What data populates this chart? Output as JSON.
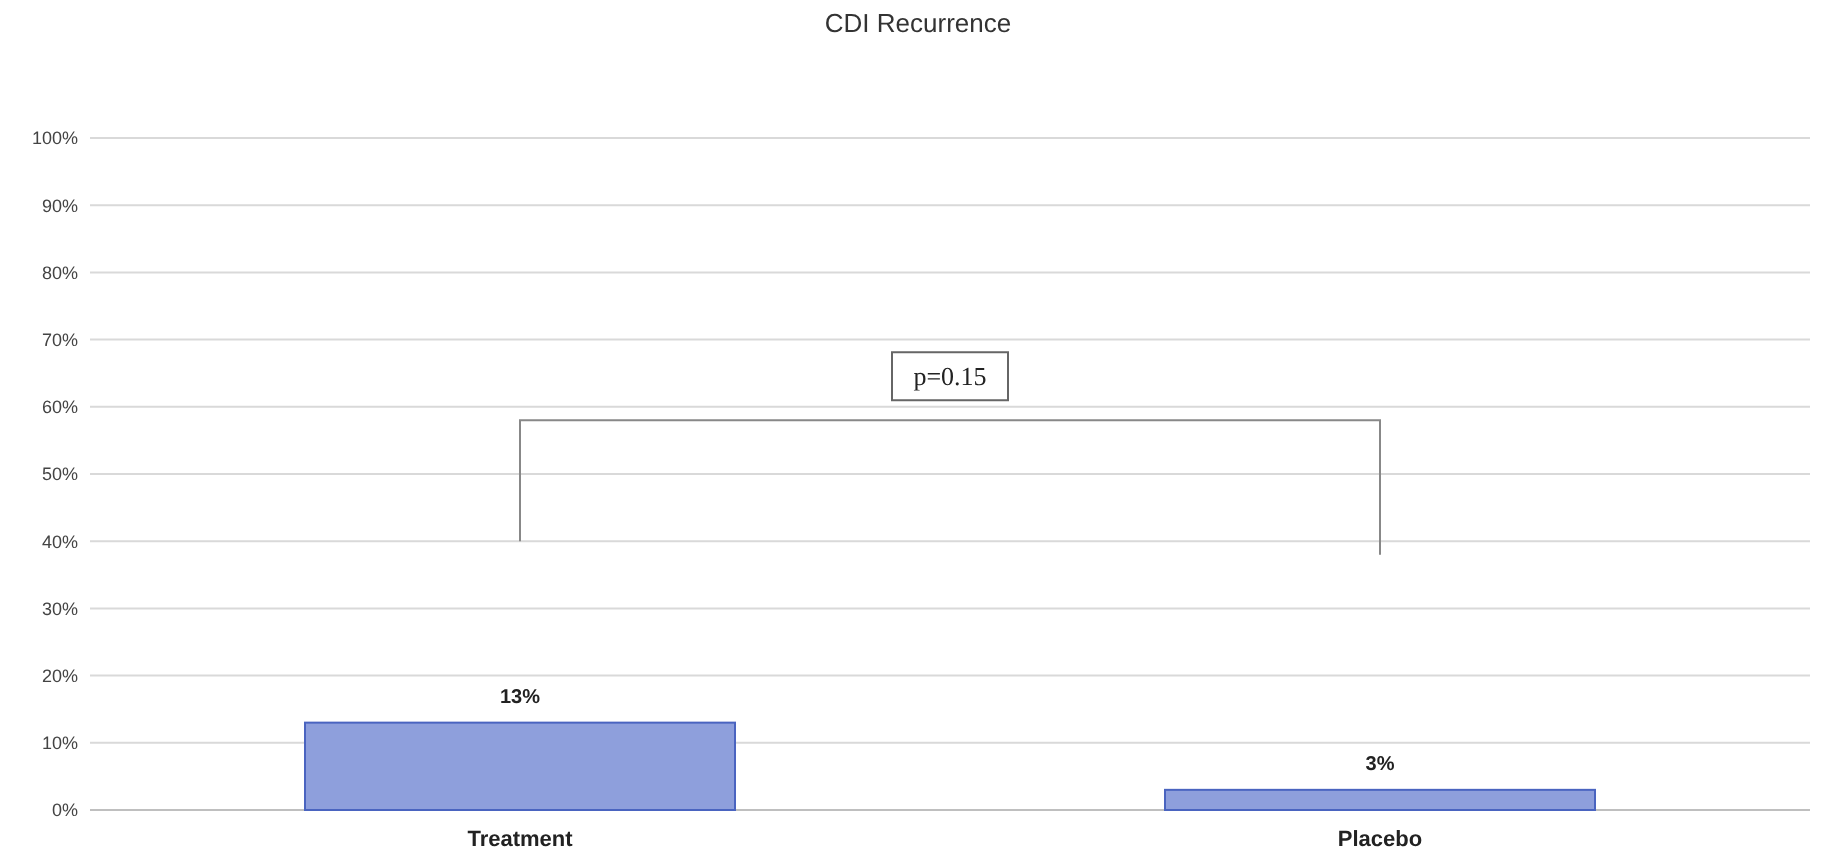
{
  "chart_data": {
    "type": "bar",
    "title": "CDI Recurrence",
    "categories": [
      "Treatment",
      "Placebo"
    ],
    "values": [
      13,
      3
    ],
    "value_labels": [
      "13%",
      "3%"
    ],
    "color": "#8e9fdc",
    "ylim": [
      0,
      100
    ],
    "yticks": [
      {
        "value": 0,
        "label": "0%"
      },
      {
        "value": 10,
        "label": "10%"
      },
      {
        "value": 20,
        "label": "20%"
      },
      {
        "value": 30,
        "label": "30%"
      },
      {
        "value": 40,
        "label": "40%"
      },
      {
        "value": 50,
        "label": "50%"
      },
      {
        "value": 60,
        "label": "60%"
      },
      {
        "value": 70,
        "label": "70%"
      },
      {
        "value": 80,
        "label": "80%"
      },
      {
        "value": 90,
        "label": "90%"
      },
      {
        "value": 100,
        "label": "100%"
      }
    ],
    "grid": "y",
    "annotations": [
      "p=0.15"
    ]
  }
}
